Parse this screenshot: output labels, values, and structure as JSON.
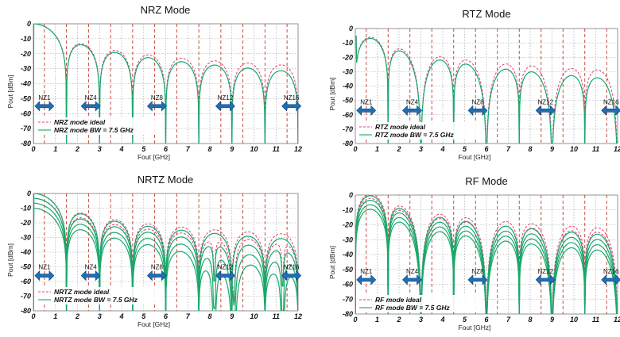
{
  "colors": {
    "ideal": "#e0407a",
    "bw": "#18a86b",
    "arrow": "#1f6fb8",
    "divider": "#c0392b",
    "grid": "#9a9a9a"
  },
  "chart_data": [
    {
      "type": "line",
      "title": "NRZ Mode",
      "xlabel": "Fout  [GHz]",
      "ylabel": "Pout  [dBm]",
      "xlim": [
        0,
        12
      ],
      "ylim": [
        -80,
        0
      ],
      "xticks": [
        "0",
        "1",
        "2",
        "3",
        "4",
        "5",
        "6",
        "7",
        "8",
        "9",
        "10",
        "11",
        "12"
      ],
      "yticks": [
        "0",
        "-10",
        "-20",
        "-30",
        "-40",
        "-50",
        "-60",
        "-70",
        "-80"
      ],
      "nz_labels": [
        "NZ1",
        "NZ4",
        "NZ8",
        "NZ12",
        "NZ16"
      ],
      "nz_positions": [
        0.5,
        2.6,
        5.6,
        8.7,
        11.7
      ],
      "nz_y": -55,
      "legend": [
        "NRZ mode ideal",
        "NRZ mode BW = 7.5 GHz"
      ],
      "envelope": "sinc",
      "nulls": [
        1.5,
        4.5,
        7.5,
        10.5
      ],
      "ripple_nulls": [],
      "series": [
        {
          "style": "ideal",
          "offset": 0,
          "tilt": 0,
          "peak_ripple": 0
        },
        {
          "style": "bw",
          "offset": 0,
          "tilt": -0.35,
          "peak_ripple": 0
        }
      ]
    },
    {
      "type": "line",
      "title": "RTZ Mode",
      "xlabel": "Fout  [GHz]",
      "ylabel": "Pout  [dBm]",
      "xlim": [
        0,
        12
      ],
      "ylim": [
        -80,
        0
      ],
      "xticks": [
        "0",
        "1",
        "2",
        "3",
        "4",
        "5",
        "6",
        "7",
        "8",
        "9",
        "10",
        "11",
        "12"
      ],
      "yticks": [
        "0",
        "-10",
        "-20",
        "-30",
        "-40",
        "-50",
        "-60",
        "-70",
        "-80"
      ],
      "nz_labels": [
        "NZ1",
        "NZ4",
        "NZ8",
        "NZ12",
        "NZ16"
      ],
      "nz_positions": [
        0.5,
        2.6,
        5.6,
        8.7,
        11.7
      ],
      "nz_y": -57,
      "legend": [
        "RTZ mode ideal",
        "RTZ mode BW = 7.5 GHz"
      ],
      "envelope": "rtz",
      "nulls": [
        1.5,
        4.5,
        7.5,
        10.5
      ],
      "ripple_nulls": [],
      "series": [
        {
          "style": "ideal",
          "offset": 0,
          "tilt": 0,
          "peak_ripple": 0
        },
        {
          "style": "bw",
          "offset": -0.5,
          "tilt": -0.45,
          "peak_ripple": 0
        }
      ]
    },
    {
      "type": "line",
      "title": "NRTZ Mode",
      "xlabel": "Fout  [GHz]",
      "ylabel": "Pout  [dBm]",
      "xlim": [
        0,
        12
      ],
      "ylim": [
        -80,
        0
      ],
      "xticks": [
        "0",
        "1",
        "2",
        "3",
        "4",
        "5",
        "6",
        "7",
        "8",
        "9",
        "10",
        "11",
        "12"
      ],
      "yticks": [
        "0",
        "-10",
        "-20",
        "-30",
        "-40",
        "-50",
        "-60",
        "-70",
        "-80"
      ],
      "nz_labels": [
        "NZ1",
        "NZ4",
        "NZ8",
        "NZ12",
        "NZ16"
      ],
      "nz_positions": [
        0.5,
        2.6,
        5.6,
        8.7,
        11.7
      ],
      "nz_y": -56,
      "legend": [
        "NRTZ mode ideal",
        "NRTZ mode BW = 7.5 GHz"
      ],
      "envelope": "sinc",
      "nulls": [
        1.5,
        4.5,
        7.5,
        10.5
      ],
      "ripple_nulls": [
        8.2,
        9.1,
        11.3
      ],
      "series": [
        {
          "style": "ideal",
          "offset": 0,
          "tilt": 0,
          "peak_ripple": 0
        },
        {
          "style": "ideal",
          "offset": -3,
          "tilt": 0,
          "peak_ripple": 6
        },
        {
          "style": "bw",
          "offset": 0,
          "tilt": -0.3,
          "peak_ripple": 0
        },
        {
          "style": "bw",
          "offset": -3,
          "tilt": -0.4,
          "peak_ripple": 6
        },
        {
          "style": "bw",
          "offset": -6,
          "tilt": -0.5,
          "peak_ripple": 9
        },
        {
          "style": "bw",
          "offset": -9,
          "tilt": -0.55,
          "peak_ripple": 12
        }
      ]
    },
    {
      "type": "line",
      "title": "RF Mode",
      "xlabel": "Fout  [GHz]",
      "ylabel": "Pout  [dBm]",
      "xlim": [
        0,
        12
      ],
      "ylim": [
        -80,
        0
      ],
      "xticks": [
        "0",
        "1",
        "2",
        "3",
        "4",
        "5",
        "6",
        "7",
        "8",
        "9",
        "10",
        "11",
        "12"
      ],
      "yticks": [
        "0",
        "-10",
        "-20",
        "-30",
        "-40",
        "-50",
        "-60",
        "-70",
        "-80"
      ],
      "nz_labels": [
        "NZ1",
        "NZ4",
        "NZ8",
        "NZ12",
        "NZ16"
      ],
      "nz_positions": [
        0.5,
        2.6,
        5.6,
        8.7,
        11.7
      ],
      "nz_y": -57,
      "legend": [
        "RF mode ideal",
        "RF mode BW = 7.5 GHz"
      ],
      "envelope": "rf",
      "nulls": [
        1.5,
        4.5,
        7.5,
        10.5
      ],
      "ripple_nulls": [],
      "series": [
        {
          "style": "ideal",
          "offset": 0,
          "tilt": 0,
          "peak_ripple": 0
        },
        {
          "style": "ideal",
          "offset": -3,
          "tilt": 0,
          "peak_ripple": 0
        },
        {
          "style": "bw",
          "offset": -1,
          "tilt": -0.3,
          "peak_ripple": 0
        },
        {
          "style": "bw",
          "offset": -4,
          "tilt": -0.35,
          "peak_ripple": 0
        },
        {
          "style": "bw",
          "offset": -7,
          "tilt": -0.4,
          "peak_ripple": 0
        },
        {
          "style": "bw",
          "offset": -10,
          "tilt": -0.45,
          "peak_ripple": 0
        }
      ]
    }
  ]
}
